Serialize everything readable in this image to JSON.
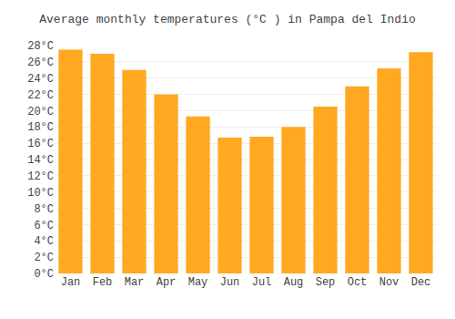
{
  "chart_data": {
    "type": "bar",
    "title": "Average monthly temperatures (°C ) in Pampa del Indio",
    "categories": [
      "Jan",
      "Feb",
      "Mar",
      "Apr",
      "May",
      "Jun",
      "Jul",
      "Aug",
      "Sep",
      "Oct",
      "Nov",
      "Dec"
    ],
    "values": [
      27.5,
      27.0,
      25.0,
      22.0,
      19.3,
      16.7,
      16.8,
      18.0,
      20.5,
      23.0,
      25.2,
      27.2
    ],
    "color": "#FFA820",
    "ylim": [
      0,
      28
    ],
    "yticks": [
      {
        "value": 0,
        "label": "0°C"
      },
      {
        "value": 2,
        "label": "2°C"
      },
      {
        "value": 4,
        "label": "4°C"
      },
      {
        "value": 6,
        "label": "6°C"
      },
      {
        "value": 8,
        "label": "8°C"
      },
      {
        "value": 10,
        "label": "10°C"
      },
      {
        "value": 12,
        "label": "12°C"
      },
      {
        "value": 14,
        "label": "14°C"
      },
      {
        "value": 16,
        "label": "16°C"
      },
      {
        "value": 18,
        "label": "18°C"
      },
      {
        "value": 20,
        "label": "20°C"
      },
      {
        "value": 22,
        "label": "22°C"
      },
      {
        "value": 24,
        "label": "24°C"
      },
      {
        "value": 26,
        "label": "26°C"
      },
      {
        "value": 28,
        "label": "28°C"
      }
    ],
    "grid": true
  }
}
